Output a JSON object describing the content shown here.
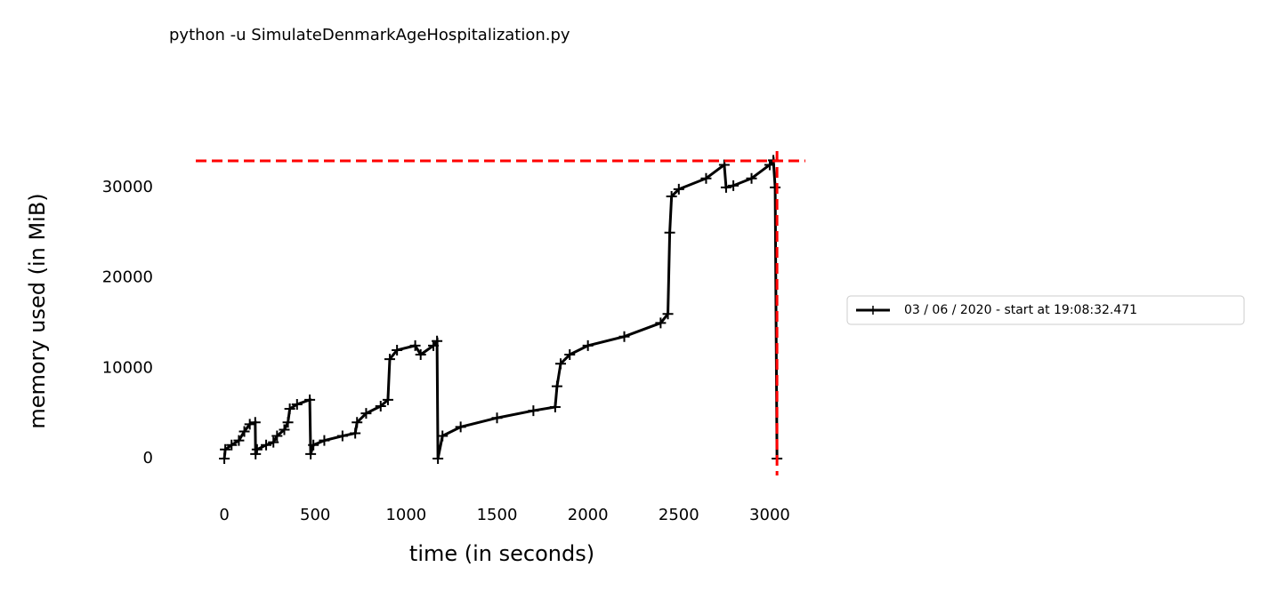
{
  "chart_data": {
    "type": "line",
    "title": "python -u SimulateDenmarkAgeHospitalization.py",
    "x_label": "time (in seconds)",
    "y_label": "memory used (in MiB)",
    "x": [
      0,
      5,
      40,
      80,
      110,
      140,
      170,
      172,
      180,
      230,
      270,
      290,
      330,
      350,
      360,
      400,
      470,
      475,
      490,
      550,
      650,
      720,
      730,
      780,
      860,
      900,
      910,
      950,
      1050,
      1080,
      1150,
      1170,
      1175,
      1200,
      1300,
      1500,
      1700,
      1820,
      1830,
      1850,
      1900,
      2000,
      2200,
      2400,
      2440,
      2450,
      2460,
      2500,
      2650,
      2750,
      2760,
      2800,
      2900,
      3000,
      3020,
      3030,
      3040
    ],
    "series": [
      {
        "name": "03 / 06 / 2020 - start at 19:08:32.471",
        "color": "#000000",
        "values": [
          0,
          1000,
          1500,
          2000,
          3000,
          3800,
          4000,
          500,
          1000,
          1500,
          1800,
          2500,
          3200,
          4000,
          5500,
          6000,
          6500,
          500,
          1500,
          2000,
          2500,
          2800,
          4000,
          5000,
          5800,
          6500,
          11000,
          12000,
          12500,
          11500,
          12500,
          13000,
          0,
          2500,
          3500,
          4500,
          5300,
          5700,
          8000,
          10500,
          11500,
          12500,
          13500,
          15000,
          16000,
          25000,
          29000,
          29800,
          31000,
          32500,
          30000,
          30200,
          31000,
          32500,
          33000,
          30000,
          0
        ]
      }
    ],
    "max_lines": {
      "y": 32940,
      "x": 3040,
      "color": "#ff0000"
    },
    "xlim": [
      -157,
      3196
    ],
    "ylim": [
      -1870,
      34020
    ],
    "xticks": [
      0,
      500,
      1000,
      1500,
      2000,
      2500,
      3000
    ],
    "yticks": [
      0,
      10000,
      20000,
      30000
    ],
    "grid": false,
    "legend": "right"
  }
}
